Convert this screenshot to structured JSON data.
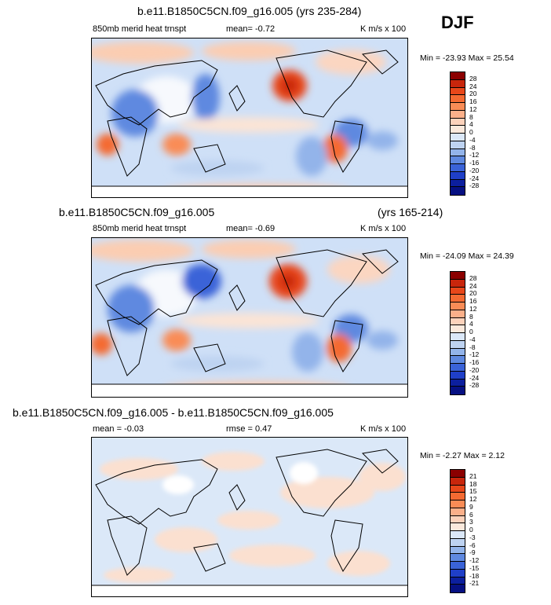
{
  "season": "DJF",
  "panels": [
    {
      "title": "b.e11.B1850C5CN.f09_g16.005 (yrs 235-284)",
      "left_label": "850mb merid heat trnspt",
      "center_label": "mean=  -0.72",
      "right_label": "K m/s x 100",
      "minmax": "Min = -23.93 Max =  25.54",
      "levels": [
        "28",
        "24",
        "20",
        "16",
        "12",
        "8",
        "4",
        "0",
        "-4",
        "-8",
        "-12",
        "-16",
        "-20",
        "-24",
        "-28"
      ],
      "colors": [
        "#8b0000",
        "#c8260c",
        "#e8471a",
        "#f46a32",
        "#f98c56",
        "#fbb08a",
        "#fcd2bb",
        "#fbe9dc",
        "#dbe8f8",
        "#bed3f1",
        "#93b4ea",
        "#5f89e0",
        "#3a63d8",
        "#1f3fc8",
        "#0c1f9e",
        "#061082"
      ]
    },
    {
      "title_left": "b.e11.B1850C5CN.f09_g16.005",
      "title_right": "(yrs 165-214)",
      "left_label": "850mb merid heat trnspt",
      "center_label": "mean=  -0.69",
      "right_label": "K m/s x 100",
      "minmax": "Min = -24.09 Max =  24.39",
      "levels": [
        "28",
        "24",
        "20",
        "16",
        "12",
        "8",
        "4",
        "0",
        "-4",
        "-8",
        "-12",
        "-16",
        "-20",
        "-24",
        "-28"
      ],
      "colors": [
        "#8b0000",
        "#c8260c",
        "#e8471a",
        "#f46a32",
        "#f98c56",
        "#fbb08a",
        "#fcd2bb",
        "#fbe9dc",
        "#dbe8f8",
        "#bed3f1",
        "#93b4ea",
        "#5f89e0",
        "#3a63d8",
        "#1f3fc8",
        "#0c1f9e",
        "#061082"
      ]
    },
    {
      "title": "b.e11.B1850C5CN.f09_g16.005 - b.e11.B1850C5CN.f09_g16.005",
      "left_label": "mean =  -0.03",
      "center_label": "rmse =  0.47",
      "right_label": "K m/s x 100",
      "minmax": "Min =  -2.27 Max =  2.12",
      "levels": [
        "21",
        "18",
        "15",
        "12",
        "9",
        "6",
        "3",
        "0",
        "-3",
        "-6",
        "-9",
        "-12",
        "-15",
        "-18",
        "-21"
      ],
      "colors": [
        "#8b0000",
        "#c8260c",
        "#e8471a",
        "#f46a32",
        "#f98c56",
        "#fbb08a",
        "#fcd2bb",
        "#fbe9dc",
        "#dbe8f8",
        "#bed3f1",
        "#93b4ea",
        "#5f89e0",
        "#3a63d8",
        "#1f3fc8",
        "#0c1f9e",
        "#061082"
      ]
    }
  ]
}
